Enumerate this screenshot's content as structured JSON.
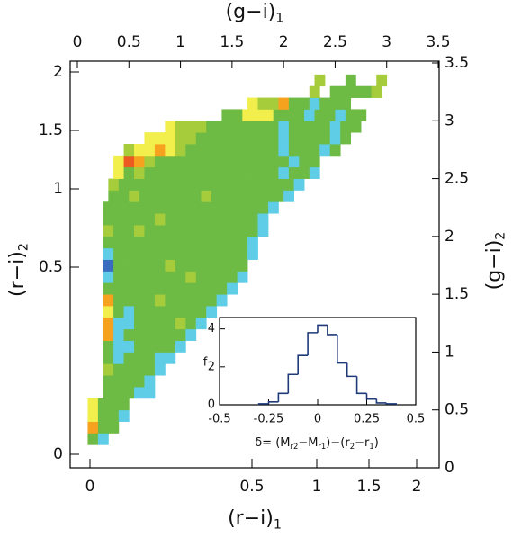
{
  "chart_data": [
    {
      "type": "heatmap",
      "top_xlabel": [
        "(g−i)",
        "1"
      ],
      "bottom_xlabel": [
        "(r−i)",
        "1"
      ],
      "left_ylabel": [
        "(r−i)",
        "2"
      ],
      "right_ylabel": [
        "(g−i)",
        "2"
      ],
      "xlim": [
        0,
        3.5
      ],
      "xticks": [
        0,
        0.5,
        1,
        1.5,
        2,
        2.5,
        3,
        3.5
      ],
      "ylim": [
        0,
        3.5
      ],
      "yticks": [
        0,
        0.5,
        1,
        1.5,
        2,
        2.5,
        3,
        3.5
      ],
      "bottom_xticks": [
        0,
        0.5,
        1,
        1.5,
        2
      ],
      "left_yticks": [
        0,
        0.5,
        1,
        1.5,
        2
      ],
      "color_levels": [
        -2,
        -1,
        0,
        1,
        2,
        3,
        4
      ],
      "colors": [
        "#3a6cc0",
        "#5fcde6",
        "#6dbb45",
        "#a6cc3b",
        "#f2ee4c",
        "#f6a21f",
        "#ec5a22"
      ],
      "rows": [
        {
          "y": 0.2,
          "x0": 0.1,
          "values": [
            0,
            -1
          ]
        },
        {
          "y": 0.3,
          "x0": 0.1,
          "values": [
            3,
            0,
            0
          ]
        },
        {
          "y": 0.4,
          "x0": 0.1,
          "values": [
            2,
            0,
            0,
            -1
          ]
        },
        {
          "y": 0.5,
          "x0": 0.1,
          "values": [
            2,
            0,
            0,
            0
          ]
        },
        {
          "y": 0.6,
          "x0": 0.25,
          "values": [
            0,
            0,
            0,
            -1,
            -1
          ]
        },
        {
          "y": 0.7,
          "x0": 0.25,
          "values": [
            0,
            0,
            0,
            0,
            -1
          ]
        },
        {
          "y": 0.8,
          "x0": 0.25,
          "values": [
            1,
            0,
            0,
            0,
            0,
            -1
          ]
        },
        {
          "y": 0.9,
          "x0": 0.25,
          "values": [
            0,
            -1,
            0,
            0,
            0,
            -1,
            -1
          ]
        },
        {
          "y": 1.0,
          "x0": 0.25,
          "values": [
            0,
            -1,
            -1,
            0,
            0,
            0,
            0,
            -1
          ]
        },
        {
          "y": 1.1,
          "x0": 0.25,
          "values": [
            3,
            -1,
            0,
            0,
            0,
            0,
            0,
            0,
            -1
          ]
        },
        {
          "y": 1.2,
          "x0": 0.25,
          "values": [
            3,
            -1,
            -1,
            0,
            0,
            0,
            0,
            1,
            0,
            -1
          ]
        },
        {
          "y": 1.3,
          "x0": 0.25,
          "values": [
            2,
            0,
            -1,
            0,
            0,
            0,
            0,
            0,
            0,
            0,
            -1
          ]
        },
        {
          "y": 1.4,
          "x0": 0.25,
          "values": [
            3,
            0,
            0,
            0,
            0,
            1,
            0,
            0,
            0,
            0,
            0,
            -1
          ]
        },
        {
          "y": 1.5,
          "x0": 0.25,
          "values": [
            0,
            0,
            0,
            0,
            0,
            0,
            0,
            0,
            0,
            0,
            0,
            0,
            -1
          ]
        },
        {
          "y": 1.6,
          "x0": 0.25,
          "values": [
            -1,
            0,
            0,
            0,
            0,
            0,
            0,
            0,
            1,
            0,
            0,
            0,
            0,
            -1
          ]
        },
        {
          "y": 1.7,
          "x0": 0.25,
          "values": [
            -2,
            0,
            0,
            0,
            0,
            0,
            1,
            0,
            0,
            0,
            0,
            0,
            0,
            0
          ]
        },
        {
          "y": 1.8,
          "x0": 0.25,
          "values": [
            -1,
            0,
            0,
            0,
            0,
            0,
            0,
            0,
            0,
            0,
            0,
            0,
            0,
            0,
            -1
          ]
        },
        {
          "y": 1.9,
          "x0": 0.25,
          "values": [
            0,
            0,
            0,
            0,
            0,
            0,
            0,
            0,
            0,
            0,
            0,
            0,
            0,
            0,
            -1
          ]
        },
        {
          "y": 2.0,
          "x0": 0.25,
          "values": [
            1,
            0,
            0,
            1,
            0,
            0,
            0,
            0,
            0,
            0,
            0,
            0,
            0,
            0,
            0,
            -1
          ]
        },
        {
          "y": 2.1,
          "x0": 0.25,
          "values": [
            0,
            0,
            0,
            0,
            0,
            1,
            0,
            0,
            0,
            0,
            0,
            0,
            0,
            0,
            0,
            -1
          ]
        },
        {
          "y": 2.2,
          "x0": 0.25,
          "values": [
            0,
            0,
            0,
            0,
            0,
            0,
            0,
            0,
            0,
            0,
            0,
            0,
            0,
            0,
            0,
            0,
            -1
          ]
        },
        {
          "y": 2.3,
          "x0": 0.3,
          "values": [
            0,
            0,
            1,
            0,
            0,
            0,
            0,
            0,
            0,
            1,
            0,
            0,
            0,
            0,
            0,
            0,
            0,
            -1
          ]
        },
        {
          "y": 2.4,
          "x0": 0.3,
          "values": [
            1,
            0,
            0,
            0,
            0,
            0,
            0,
            0,
            0,
            0,
            0,
            0,
            0,
            0,
            0,
            0,
            0,
            0,
            -1
          ]
        },
        {
          "y": 2.5,
          "x0": 0.35,
          "values": [
            2,
            0,
            1,
            0,
            0,
            0,
            0,
            0,
            0,
            0,
            0,
            0,
            0,
            0,
            0,
            0,
            -1,
            0,
            0,
            -1
          ]
        },
        {
          "y": 2.6,
          "x0": 0.35,
          "values": [
            2,
            4,
            3,
            1,
            0,
            0,
            0,
            0,
            0,
            0,
            0,
            0,
            0,
            0,
            0,
            0,
            0,
            -1,
            0,
            0
          ]
        },
        {
          "y": 2.7,
          "x0": 0.45,
          "values": [
            1,
            2,
            2,
            3,
            2,
            1,
            0,
            0,
            0,
            0,
            0,
            0,
            0,
            0,
            0,
            -1,
            0,
            0,
            0,
            -1,
            0
          ]
        },
        {
          "y": 2.8,
          "x0": 0.65,
          "values": [
            2,
            2,
            2,
            1,
            1,
            0,
            0,
            0,
            0,
            0,
            0,
            0,
            0,
            -1,
            0,
            0,
            0,
            0,
            -1,
            0
          ]
        },
        {
          "y": 2.9,
          "x0": 0.85,
          "values": [
            2,
            1,
            1,
            1,
            0,
            0,
            0,
            0,
            0,
            0,
            0,
            -1,
            0,
            0,
            0,
            0,
            -1,
            0,
            0
          ]
        },
        {
          "y": 3.0,
          "x0": 1.4,
          "values": [
            0,
            0,
            2,
            2,
            2,
            0,
            0,
            0,
            -1,
            0,
            0,
            -1,
            0,
            0
          ]
        },
        {
          "y": 3.1,
          "x0": 1.65,
          "values": [
            2,
            1,
            1,
            3,
            0,
            0,
            -1,
            0,
            0,
            0
          ]
        },
        {
          "y": 3.2,
          "x0": 2.25,
          "values": [
            1,
            null,
            0,
            0,
            0,
            0,
            1
          ]
        },
        {
          "y": 3.3,
          "x0": 2.3,
          "values": [
            1,
            null,
            null,
            0,
            null,
            null,
            1
          ]
        }
      ]
    },
    {
      "type": "histogram",
      "color": "#1f3a78",
      "ylabel": "f",
      "xlabel": [
        "δ= (M",
        "r2",
        "−M",
        "r1",
        ")−(r",
        "2",
        "−r",
        "1",
        ")"
      ],
      "xlim": [
        -0.5,
        0.5
      ],
      "xticks": [
        -0.5,
        -0.25,
        0,
        0.25,
        0.5
      ],
      "ylim": [
        0,
        4.6
      ],
      "yticks": [
        0,
        2,
        4
      ],
      "bins": [
        -0.3,
        -0.25,
        -0.2,
        -0.15,
        -0.1,
        -0.05,
        0,
        0.05,
        0.1,
        0.15,
        0.2,
        0.25,
        0.3,
        0.35,
        0.4
      ],
      "values": [
        0.05,
        0.15,
        0.6,
        1.6,
        2.6,
        3.8,
        4.2,
        3.7,
        2.2,
        1.5,
        0.6,
        0.3,
        0.1,
        0.05
      ]
    }
  ]
}
